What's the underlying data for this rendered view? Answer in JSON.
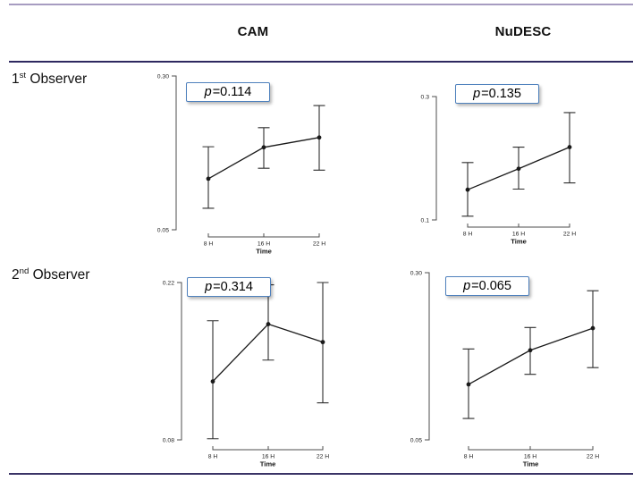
{
  "figure": {
    "columns": [
      "CAM",
      "NuDESC"
    ],
    "rows": [
      {
        "ordinal": "1",
        "suffix": "st",
        "word": "Observer"
      },
      {
        "ordinal": "2",
        "suffix": "nd",
        "word": "Observer"
      }
    ]
  },
  "colors": {
    "top_rule": "#a79cc1",
    "header_rule": "#2e2960",
    "bottom_rule": "#3a3366",
    "p_box_border": "#4f81bd",
    "axis": "#4d4d4d",
    "error_bar": "#2e2e2e",
    "line": "#1a1a1a",
    "tick_text": "#222222"
  },
  "chart_data": [
    {
      "id": "cam-observer1",
      "type": "line",
      "column": "CAM",
      "row": "1st Observer",
      "p_value": 0.114,
      "p_label": {
        "symbol": "p",
        "rest": "=0.114"
      },
      "x": [
        "8 H",
        "16 H",
        "22 H"
      ],
      "xlabel": "Time",
      "ylim": [
        0.05,
        0.3
      ],
      "yticks": [
        {
          "value": 0.3,
          "label": "0.30"
        },
        {
          "value": 0.05,
          "label": "0.05"
        }
      ],
      "grid": false,
      "legend": false,
      "series": [
        {
          "name": "mean",
          "values": [
            0.133,
            0.184,
            0.2
          ]
        }
      ],
      "ci_low": [
        0.085,
        0.15,
        0.147
      ],
      "ci_high": [
        0.185,
        0.216,
        0.252
      ]
    },
    {
      "id": "nudesc-observer1",
      "type": "line",
      "column": "NuDESC",
      "row": "1st Observer",
      "p_value": 0.135,
      "p_label": {
        "symbol": "p",
        "rest": "=0.135"
      },
      "x": [
        "8 H",
        "16 H",
        "22 H"
      ],
      "xlabel": "Time",
      "ylim": [
        0.1,
        0.3
      ],
      "yticks": [
        {
          "value": 0.3,
          "label": "0.3"
        },
        {
          "value": 0.1,
          "label": "0.1"
        }
      ],
      "grid": false,
      "legend": false,
      "series": [
        {
          "name": "mean",
          "values": [
            0.149,
            0.183,
            0.218
          ]
        }
      ],
      "ci_low": [
        0.106,
        0.15,
        0.16
      ],
      "ci_high": [
        0.193,
        0.218,
        0.274
      ]
    },
    {
      "id": "cam-observer2",
      "type": "line",
      "column": "CAM",
      "row": "2nd Observer",
      "p_value": 0.314,
      "p_label": {
        "symbol": "p",
        "rest": "=0.314"
      },
      "x": [
        "8 H",
        "16 H",
        "22 H"
      ],
      "xlabel": "Time",
      "ylim": [
        0.08,
        0.22
      ],
      "yticks": [
        {
          "value": 0.22,
          "label": "0.22"
        },
        {
          "value": 0.08,
          "label": "0.08"
        }
      ],
      "grid": false,
      "legend": false,
      "series": [
        {
          "name": "mean",
          "values": [
            0.132,
            0.183,
            0.167
          ]
        }
      ],
      "ci_low": [
        0.081,
        0.151,
        0.113
      ],
      "ci_high": [
        0.186,
        0.218,
        0.22
      ]
    },
    {
      "id": "nudesc-observer2",
      "type": "line",
      "column": "NuDESC",
      "row": "2nd Observer",
      "p_value": 0.065,
      "p_label": {
        "symbol": "p",
        "rest": "=0.065"
      },
      "x": [
        "8 H",
        "16 H",
        "22 H"
      ],
      "xlabel": "Time",
      "ylim": [
        0.05,
        0.3
      ],
      "yticks": [
        {
          "value": 0.3,
          "label": "0.30"
        },
        {
          "value": 0.05,
          "label": "0.05"
        }
      ],
      "grid": false,
      "legend": false,
      "series": [
        {
          "name": "mean",
          "values": [
            0.133,
            0.184,
            0.217
          ]
        }
      ],
      "ci_low": [
        0.082,
        0.148,
        0.158
      ],
      "ci_high": [
        0.186,
        0.218,
        0.273
      ]
    }
  ]
}
